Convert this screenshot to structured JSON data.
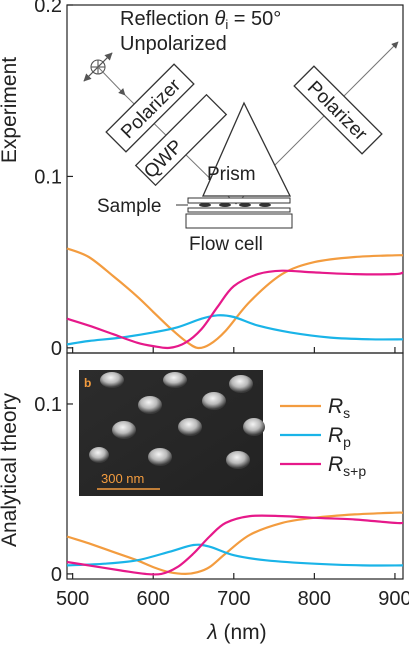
{
  "chart_data": [
    {
      "type": "line",
      "ylabel": "Experiment",
      "xlim": [
        493,
        910
      ],
      "ylim": [
        -0.003,
        0.2
      ],
      "yticks": [
        "0",
        "0.1",
        "0.2"
      ],
      "ytick_values": [
        0,
        0.1,
        0.2
      ],
      "series": [
        {
          "key": "Rs",
          "color": "#f39c3f",
          "x": [
            493,
            520,
            550,
            580,
            600,
            620,
            640,
            655,
            670,
            690,
            720,
            760,
            800,
            850,
            900,
            910
          ],
          "y": [
            0.058,
            0.053,
            0.042,
            0.03,
            0.021,
            0.012,
            0.004,
            0.0,
            0.002,
            0.01,
            0.027,
            0.043,
            0.05,
            0.053,
            0.054,
            0.054
          ]
        },
        {
          "key": "Rp",
          "color": "#1ab4e8",
          "x": [
            493,
            520,
            560,
            600,
            630,
            660,
            680,
            700,
            730,
            770,
            820,
            870,
            910
          ],
          "y": [
            0.002,
            0.004,
            0.006,
            0.009,
            0.012,
            0.017,
            0.019,
            0.018,
            0.013,
            0.009,
            0.006,
            0.005,
            0.005
          ]
        },
        {
          "key": "Rsp",
          "color": "#e6198a",
          "x": [
            493,
            520,
            550,
            580,
            600,
            620,
            640,
            660,
            680,
            700,
            730,
            760,
            800,
            850,
            900,
            910
          ],
          "y": [
            0.017,
            0.013,
            0.008,
            0.003,
            0.001,
            0.0,
            0.003,
            0.011,
            0.024,
            0.036,
            0.043,
            0.045,
            0.044,
            0.043,
            0.043,
            0.044
          ]
        }
      ]
    },
    {
      "type": "line",
      "ylabel": "Analytical theory",
      "xlabel_var": "λ",
      "xlabel_unit": " (nm)",
      "xlim": [
        493,
        910
      ],
      "ylim": [
        -0.003,
        0.13
      ],
      "xticks": [
        "500",
        "600",
        "700",
        "800",
        "900"
      ],
      "xtick_values": [
        500,
        600,
        700,
        800,
        900
      ],
      "yticks": [
        "0",
        "0.1"
      ],
      "ytick_values": [
        0,
        0.1
      ],
      "series": [
        {
          "key": "Rs",
          "color": "#f39c3f",
          "x": [
            493,
            520,
            550,
            580,
            600,
            620,
            640,
            655,
            670,
            690,
            720,
            760,
            800,
            850,
            900,
            910
          ],
          "y": [
            0.022,
            0.018,
            0.013,
            0.008,
            0.004,
            0.001,
            0.0,
            0.001,
            0.004,
            0.012,
            0.023,
            0.03,
            0.033,
            0.035,
            0.036,
            0.036
          ]
        },
        {
          "key": "Rp",
          "color": "#1ab4e8",
          "x": [
            493,
            540,
            580,
            620,
            650,
            670,
            700,
            740,
            800,
            860,
            910
          ],
          "y": [
            0.005,
            0.006,
            0.008,
            0.013,
            0.017,
            0.016,
            0.011,
            0.008,
            0.006,
            0.005,
            0.005
          ]
        },
        {
          "key": "Rsp",
          "color": "#e6198a",
          "x": [
            493,
            520,
            560,
            590,
            610,
            630,
            650,
            670,
            690,
            720,
            760,
            800,
            850,
            900,
            910
          ],
          "y": [
            0.007,
            0.005,
            0.002,
            0.0,
            0.0,
            0.004,
            0.012,
            0.022,
            0.03,
            0.034,
            0.034,
            0.033,
            0.032,
            0.03,
            0.03
          ]
        }
      ]
    }
  ],
  "legend": [
    {
      "key": "Rs",
      "main": "R",
      "sub": "s",
      "color": "#f39c3f"
    },
    {
      "key": "Rp",
      "main": "R",
      "sub": "p",
      "color": "#1ab4e8"
    },
    {
      "key": "Rsp",
      "main": "R",
      "sub": "s+p",
      "color": "#e6198a"
    }
  ],
  "schematic": {
    "title_prefix": "Reflection ",
    "theta": "θ",
    "theta_sub": "i",
    "title_suffix": " = 50°",
    "subtitle": "Unpolarized",
    "polarizer_in": "Polarizer",
    "qwp": "QWP",
    "prism": "Prism",
    "polarizer_out": "Polarizer",
    "sample": "Sample",
    "flow_cell": "Flow cell"
  },
  "inset": {
    "panel_label": "b",
    "scale_bar": "300 nm",
    "accent": "#f39c3f"
  }
}
